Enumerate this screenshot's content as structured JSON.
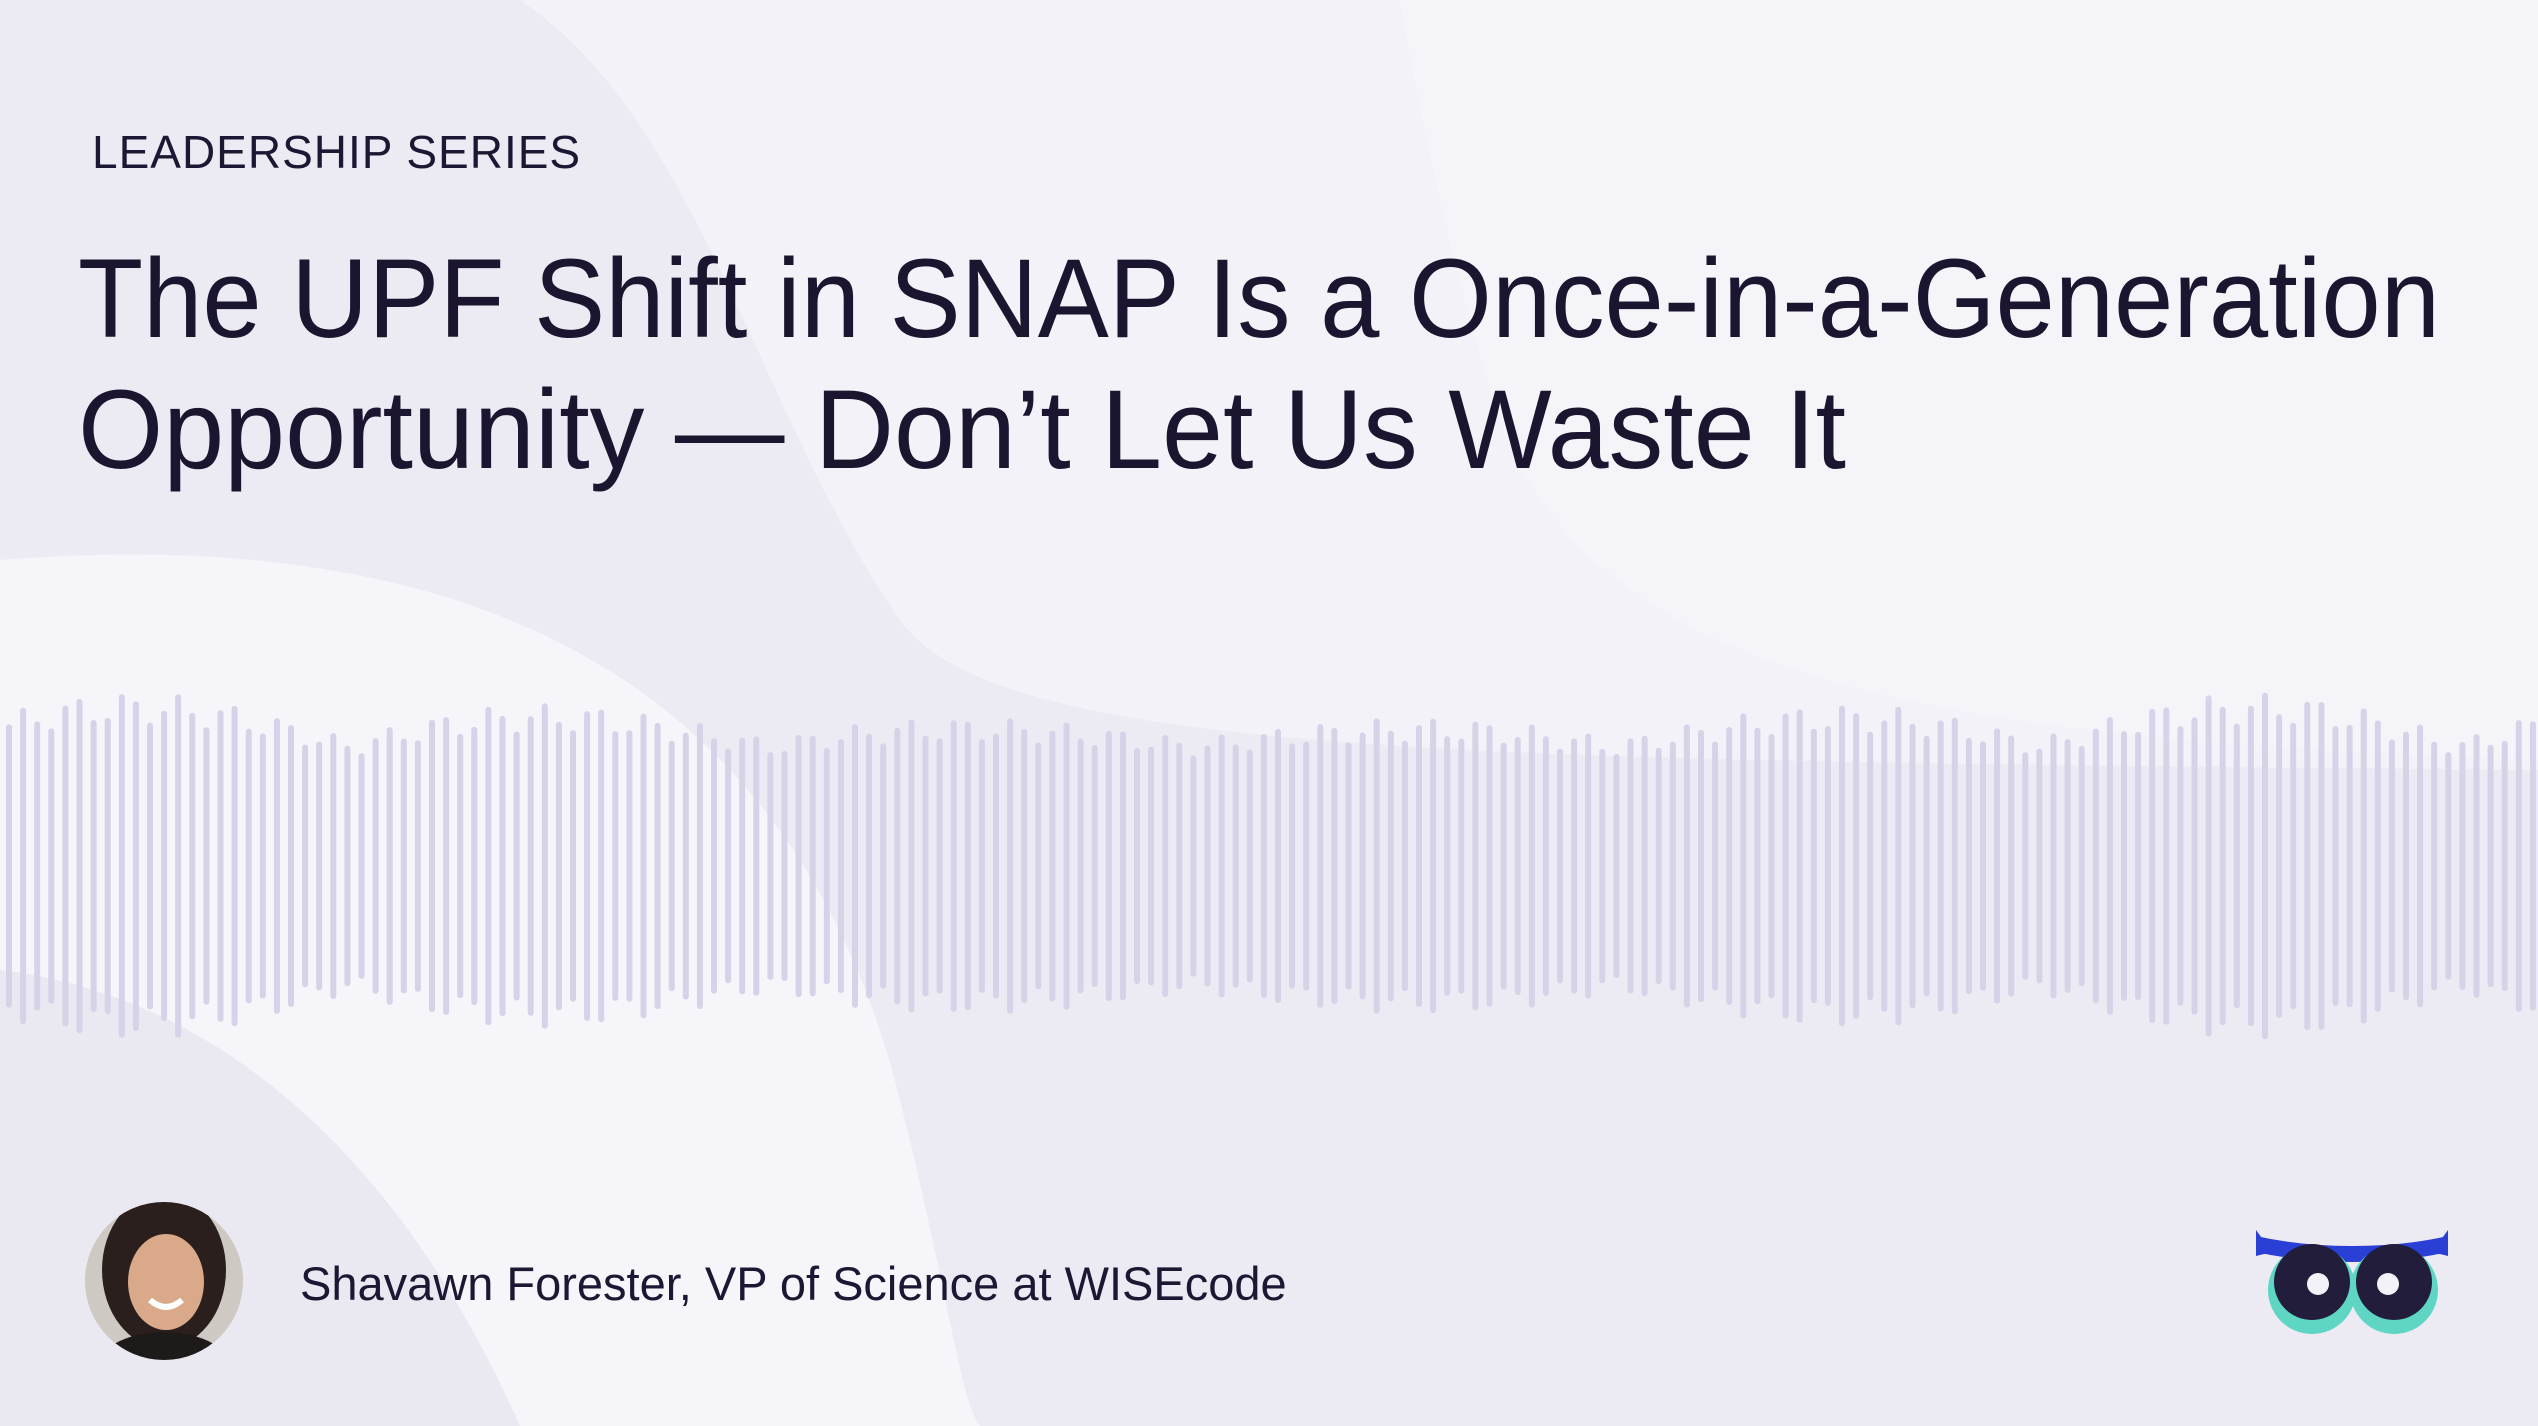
{
  "series_label": "LEADERSHIP SERIES",
  "title_lines": [
    "The UPF Shift in SNAP Is a Once-in-a-Generation",
    "Opportunity — Don’t Let Us Waste It"
  ],
  "speaker": "Shavawn Forester, VP of Science at WISEcode"
}
